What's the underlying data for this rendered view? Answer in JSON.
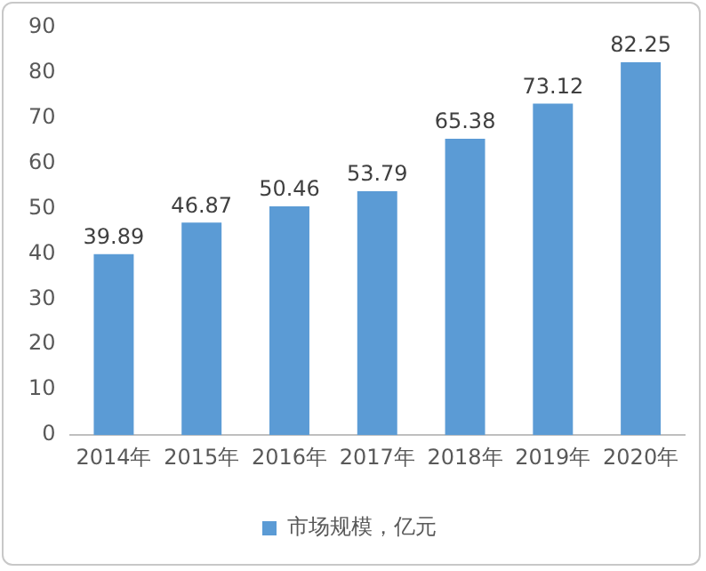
{
  "chart_data": {
    "type": "bar",
    "categories": [
      "2014年",
      "2015年",
      "2016年",
      "2017年",
      "2018年",
      "2019年",
      "2020年"
    ],
    "series": [
      {
        "name": "市场规模，亿元",
        "color": "#5b9bd5",
        "values": [
          39.89,
          46.87,
          50.46,
          53.79,
          65.38,
          73.12,
          82.25
        ]
      }
    ],
    "ylim": [
      0,
      90
    ],
    "yticks": [
      0,
      10,
      20,
      30,
      40,
      50,
      60,
      70,
      80,
      90
    ],
    "grid": false,
    "legend": "bottom",
    "data_labels": true
  }
}
